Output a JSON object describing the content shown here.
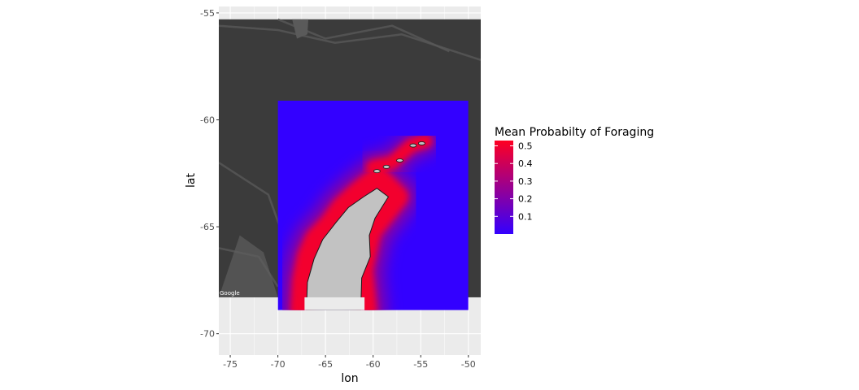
{
  "chart_data": {
    "type": "heatmap",
    "title": "",
    "xlabel": "lon",
    "ylabel": "lat",
    "xlim": [
      -76.2,
      -48.7
    ],
    "ylim": [
      -71,
      -54.7
    ],
    "x_ticks": [
      -75,
      -70,
      -65,
      -60,
      -55,
      -50
    ],
    "x_tick_labels": [
      "-75",
      "-70",
      "-65",
      "-60",
      "-55",
      "-50"
    ],
    "y_ticks": [
      -55,
      -60,
      -65,
      -70
    ],
    "y_tick_labels": [
      "-55",
      "-60",
      "-65",
      "-70"
    ],
    "grid": true,
    "basemap": {
      "provider_text": "Google",
      "lon_range": [
        -76.2,
        -48.7
      ],
      "lat_range": [
        -68.3,
        -55.3
      ]
    },
    "raster": {
      "lon_range": [
        -70,
        -50
      ],
      "lat_range": [
        -68.9,
        -59.1
      ],
      "background_value": 0.0,
      "peninsula_path": [
        [
          -67.5,
          -68.9
        ],
        [
          -67.3,
          -67.5
        ],
        [
          -66.8,
          -66.4
        ],
        [
          -66.0,
          -65.6
        ],
        [
          -64.5,
          -64.9
        ],
        [
          -63.2,
          -64.1
        ],
        [
          -61.5,
          -63.4
        ],
        [
          -59.5,
          -62.7
        ],
        [
          -57.5,
          -63.6
        ],
        [
          -60.3,
          -65.2
        ],
        [
          -61.2,
          -67.0
        ],
        [
          -60.8,
          -68.9
        ]
      ],
      "island_arc": [
        [
          -60.0,
          -62.2
        ],
        [
          -58.0,
          -62.0
        ],
        [
          -56.0,
          -61.2
        ],
        [
          -54.5,
          -61.0
        ]
      ],
      "coast_value": 0.5,
      "falloff_degrees": 1.6
    },
    "legend": {
      "title": "Mean Probabilty of Foraging",
      "placement": "right",
      "range": [
        0.0,
        0.53
      ],
      "breaks": [
        0.5,
        0.4,
        0.3,
        0.2,
        0.1
      ],
      "labels": [
        "0.5",
        "0.4",
        "0.3",
        "0.2",
        "0.1"
      ],
      "low_color": "#3300ff",
      "high_color": "#ff0022"
    }
  }
}
